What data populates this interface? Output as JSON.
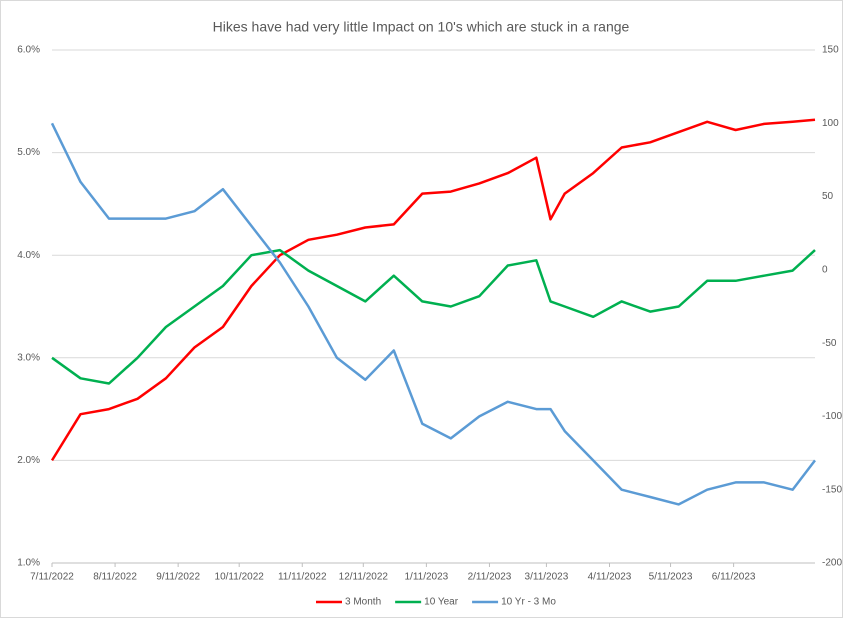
{
  "chart_data": {
    "type": "line",
    "title": "Hikes have had very little Impact on 10's which are stuck in a range",
    "x": [
      "7/11/2022",
      "7/25/2022",
      "8/8/2022",
      "8/22/2022",
      "9/5/2022",
      "9/19/2022",
      "10/3/2022",
      "10/17/2022",
      "10/31/2022",
      "11/14/2022",
      "11/28/2022",
      "12/12/2022",
      "12/26/2022",
      "1/9/2023",
      "1/23/2023",
      "2/6/2023",
      "2/20/2023",
      "3/6/2023",
      "3/13/2023",
      "3/20/2023",
      "4/3/2023",
      "4/17/2023",
      "5/1/2023",
      "5/15/2023",
      "5/29/2023",
      "6/12/2023",
      "6/26/2023",
      "7/10/2023",
      "7/21/2023"
    ],
    "series": [
      {
        "name": "3 Month",
        "color": "#ff0000",
        "values": [
          2.0,
          2.45,
          2.5,
          2.6,
          2.8,
          3.1,
          3.3,
          3.7,
          4.0,
          4.15,
          4.2,
          4.27,
          4.3,
          4.6,
          4.62,
          4.7,
          4.8,
          4.95,
          4.35,
          4.6,
          4.8,
          5.05,
          5.1,
          5.2,
          5.3,
          5.22,
          5.28,
          5.3,
          5.32
        ]
      },
      {
        "name": "10 Year",
        "color": "#00b050",
        "values": [
          3.0,
          2.8,
          2.75,
          3.0,
          3.3,
          3.5,
          3.7,
          4.0,
          4.05,
          3.85,
          3.7,
          3.55,
          3.8,
          3.55,
          3.5,
          3.6,
          3.9,
          3.95,
          3.55,
          3.5,
          3.4,
          3.55,
          3.45,
          3.5,
          3.75,
          3.75,
          3.8,
          3.85,
          4.05
        ]
      },
      {
        "name": "10 Yr - 3 Mo",
        "color": "#5b9bd5",
        "axis": "y2",
        "values": [
          100,
          60,
          35,
          35,
          35,
          40,
          55,
          30,
          5,
          -25,
          -60,
          -75,
          -55,
          -105,
          -115,
          -100,
          -90,
          -95,
          -95,
          -110,
          -130,
          -150,
          -155,
          -160,
          -150,
          -145,
          -145,
          -150,
          -130
        ]
      }
    ],
    "xlim": [
      "7/11/2022",
      "7/21/2023"
    ],
    "xticks": [
      "7/11/2022",
      "8/11/2022",
      "9/11/2022",
      "10/11/2022",
      "11/11/2022",
      "12/11/2022",
      "1/11/2023",
      "2/11/2023",
      "3/11/2023",
      "4/11/2023",
      "5/11/2023",
      "6/11/2023"
    ],
    "ylim": [
      1,
      6
    ],
    "yticks": [
      {
        "value": 1,
        "label": "1.0%"
      },
      {
        "value": 2,
        "label": "2.0%"
      },
      {
        "value": 3,
        "label": "3.0%"
      },
      {
        "value": 4,
        "label": "4.0%"
      },
      {
        "value": 5,
        "label": "5.0%"
      },
      {
        "value": 6,
        "label": "6.0%"
      }
    ],
    "y2lim": [
      -200,
      150
    ],
    "y2ticks": [
      -200,
      -150,
      -100,
      -50,
      0,
      50,
      100,
      150
    ],
    "grid": true,
    "legend": "bottom"
  }
}
